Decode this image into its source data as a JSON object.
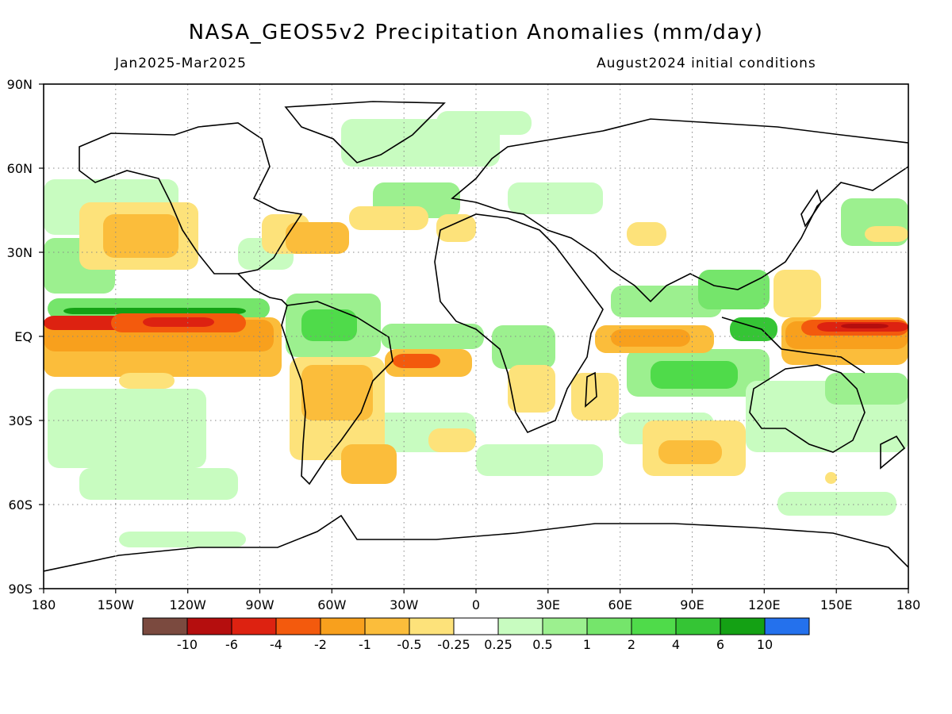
{
  "title": "NASA_GEOS5v2 Precipitation Anomalies (mm/day)",
  "period": "Jan2025-Mar2025",
  "initial_conditions": "August2024 initial conditions",
  "lat_labels": [
    "90N",
    "60N",
    "30N",
    "EQ",
    "30S",
    "60S",
    "90S"
  ],
  "lon_labels": [
    "180",
    "150W",
    "120W",
    "90W",
    "60W",
    "30W",
    "0",
    "30E",
    "60E",
    "90E",
    "120E",
    "150E",
    "180"
  ],
  "colorbar": {
    "colors": [
      "#7b4a3f",
      "#b50e0e",
      "#dd2211",
      "#f35a0d",
      "#f8a01d",
      "#fbbd3b",
      "#fde27a",
      "#ffffff",
      "#c8fcc0",
      "#9cf08f",
      "#75e56b",
      "#4fdb4a",
      "#35c535",
      "#14a114",
      "#2471ed"
    ],
    "tick_labels": [
      "-10",
      "-6",
      "-4",
      "-2",
      "-1",
      "-0.5",
      "-0.25",
      "0.25",
      "0.5",
      "1",
      "2",
      "4",
      "6",
      "10"
    ]
  },
  "palette": {
    "dry_light": "#fde27a",
    "dry_mid": "#fbbd3b",
    "dry_orange": "#f8a01d",
    "dry_strong": "#f35a0d",
    "dry_red": "#dd2211",
    "dry_darkred": "#b50e0e",
    "wet_light": "#c8fcc0",
    "wet_mid": "#9cf08f",
    "wet_green": "#75e56b",
    "wet_strong": "#4fdb4a",
    "wet_dark": "#35c535",
    "wet_darkest": "#14a114"
  }
}
